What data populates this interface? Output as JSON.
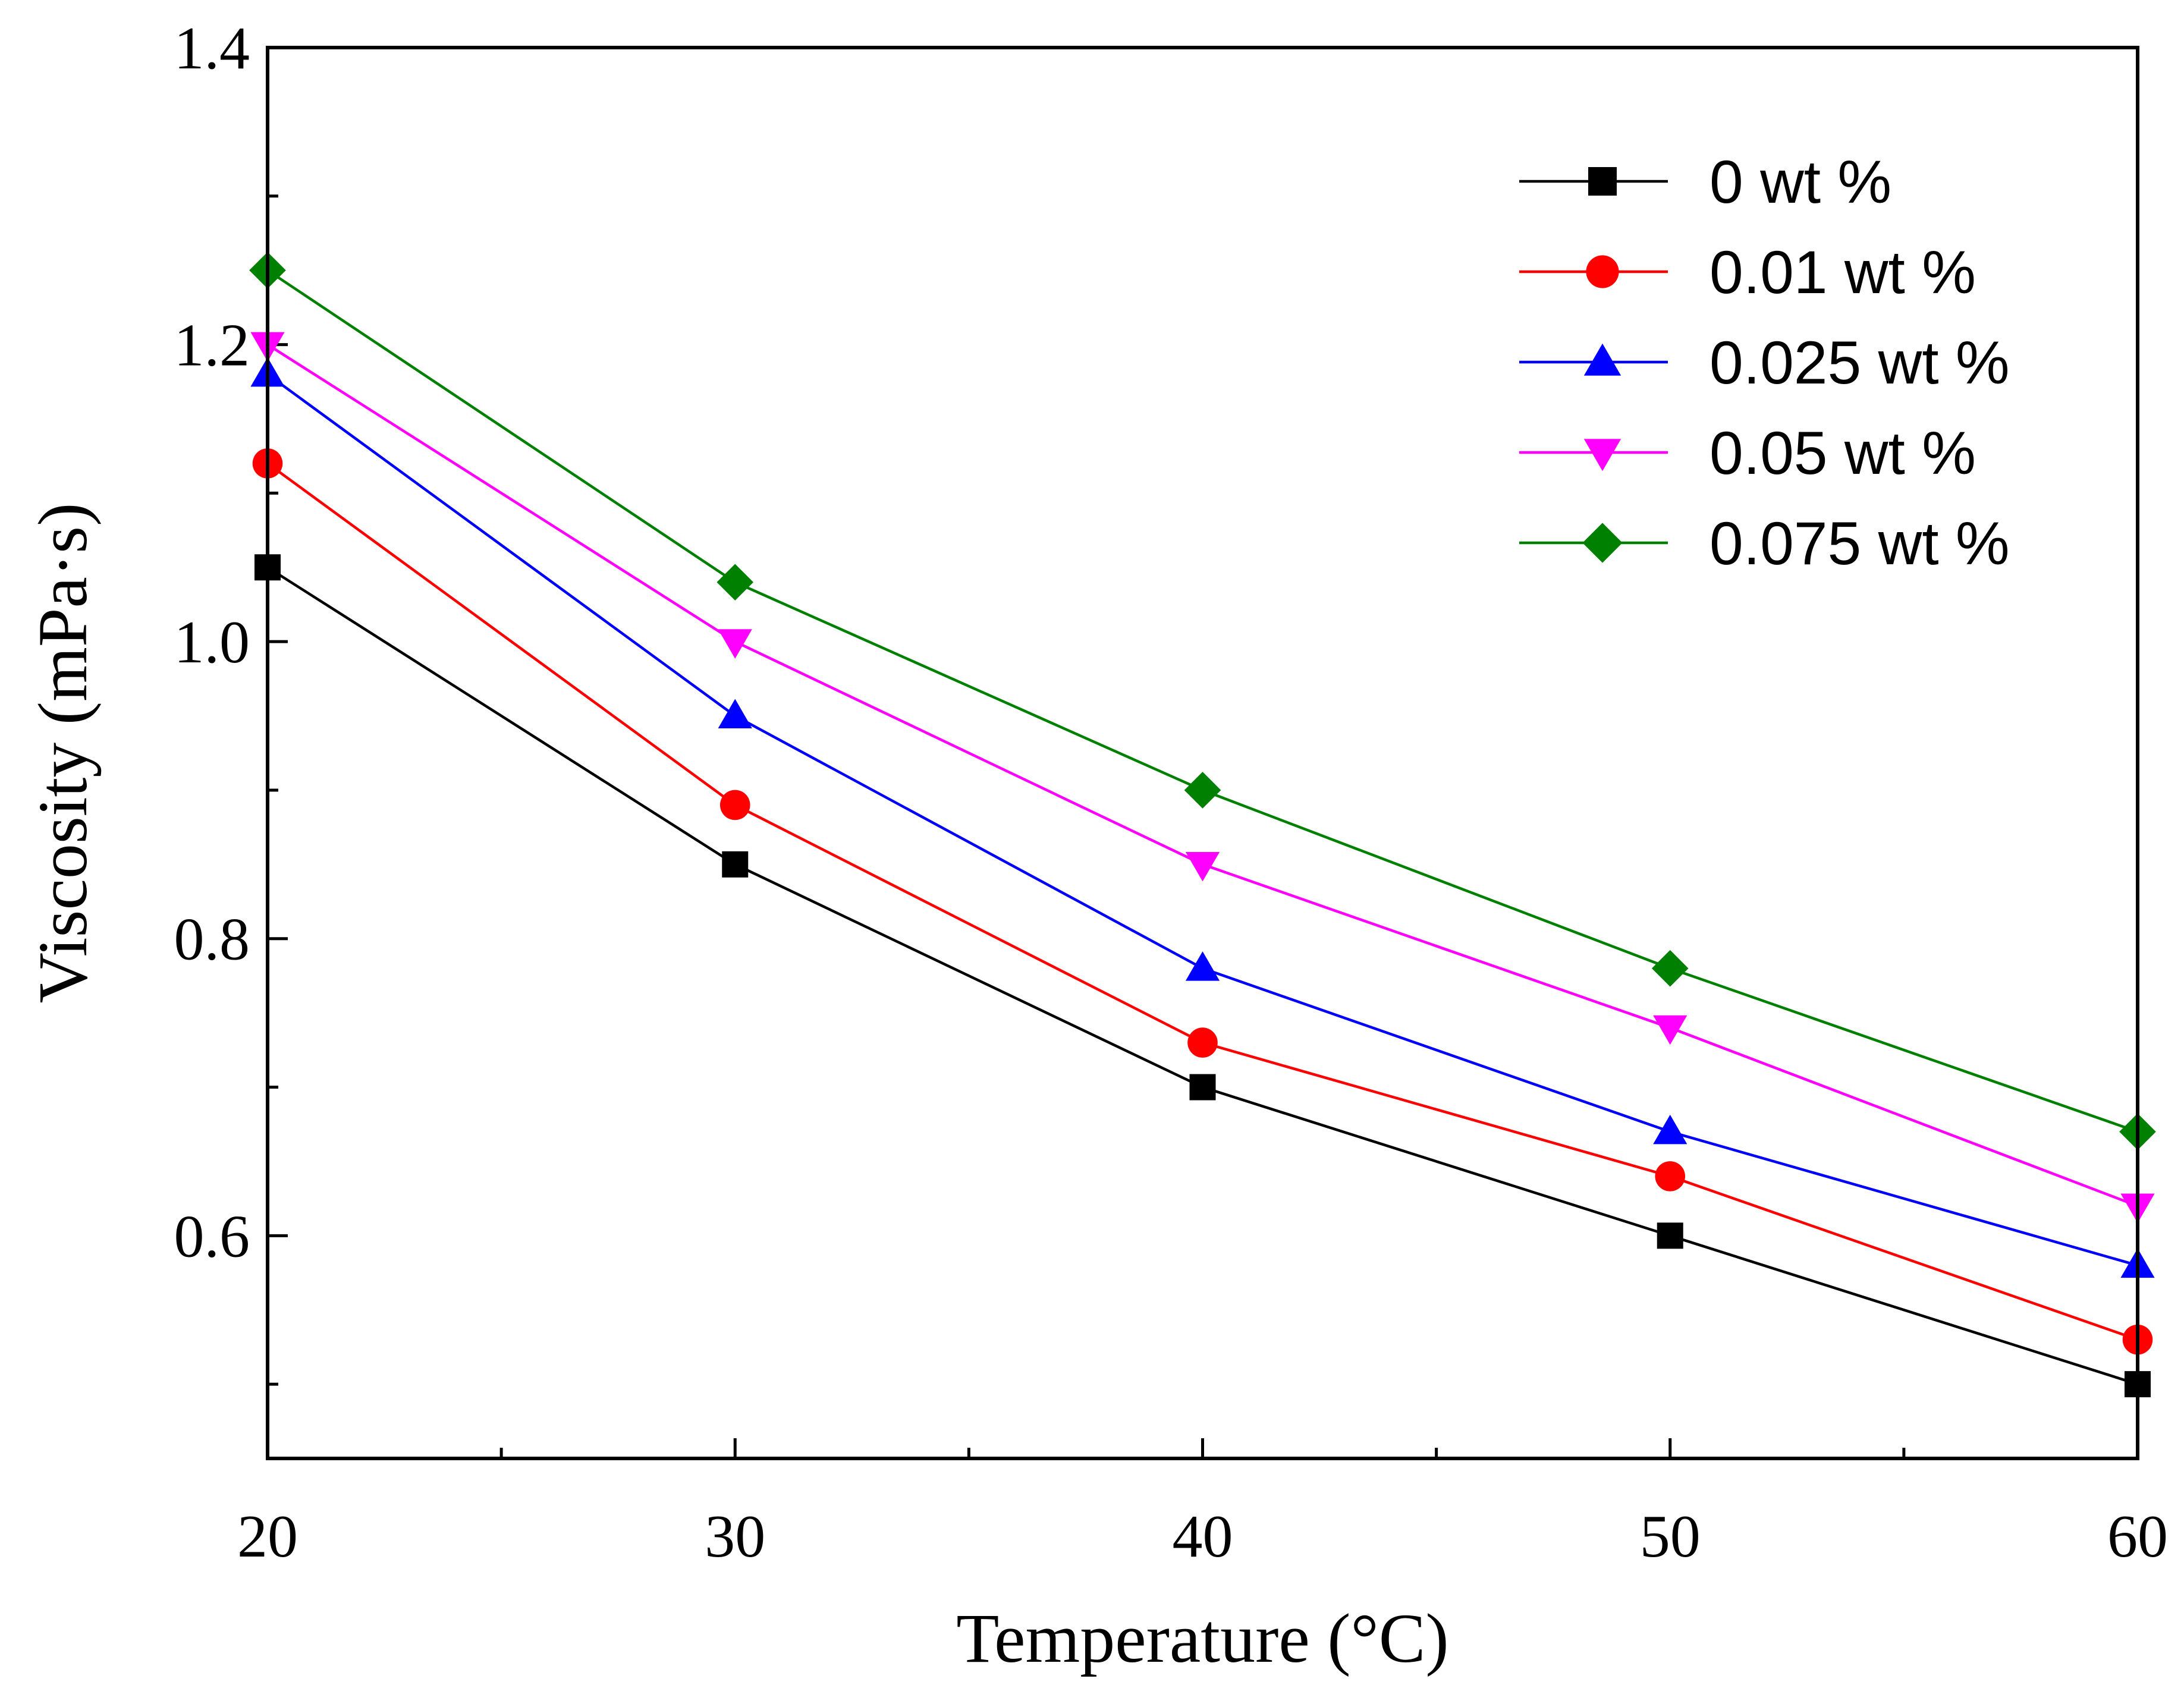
{
  "chart_data": {
    "type": "line",
    "title": "",
    "xlabel": "Temperature (°C)",
    "ylabel": "Viscosity (mPa·s)",
    "xlim": [
      20,
      60
    ],
    "ylim": [
      0.45,
      1.4
    ],
    "x_ticks": [
      20,
      30,
      40,
      50,
      60
    ],
    "x_tick_labels": [
      "20",
      "30",
      "40",
      "50",
      "60"
    ],
    "x_minor_ticks": [
      25,
      35,
      45,
      55
    ],
    "y_ticks": [
      0.6,
      0.8,
      1.0,
      1.2,
      1.4
    ],
    "y_tick_labels": [
      "0.6",
      "0.8",
      "1.0",
      "1.2",
      "1.4"
    ],
    "y_minor_ticks": [
      0.5,
      0.7,
      0.9,
      1.1,
      1.3
    ],
    "grid": false,
    "legend_position": "top-right",
    "x": [
      20,
      30,
      40,
      50,
      60
    ],
    "series": [
      {
        "name": "0 wt %",
        "color": "#000000",
        "marker": "square",
        "values": [
          1.05,
          0.85,
          0.7,
          0.6,
          0.5
        ]
      },
      {
        "name": "0.01 wt %",
        "color": "#ff0000",
        "marker": "circle",
        "values": [
          1.12,
          0.89,
          0.73,
          0.64,
          0.53
        ]
      },
      {
        "name": "0.025 wt %",
        "color": "#0000ff",
        "marker": "triangle-up",
        "values": [
          1.18,
          0.95,
          0.78,
          0.67,
          0.58
        ]
      },
      {
        "name": "0.05 wt %",
        "color": "#ff00ff",
        "marker": "triangle-down",
        "values": [
          1.2,
          1.0,
          0.85,
          0.74,
          0.62
        ]
      },
      {
        "name": "0.075 wt %",
        "color": "#008000",
        "marker": "diamond",
        "values": [
          1.25,
          1.04,
          0.9,
          0.78,
          0.67
        ]
      }
    ]
  }
}
